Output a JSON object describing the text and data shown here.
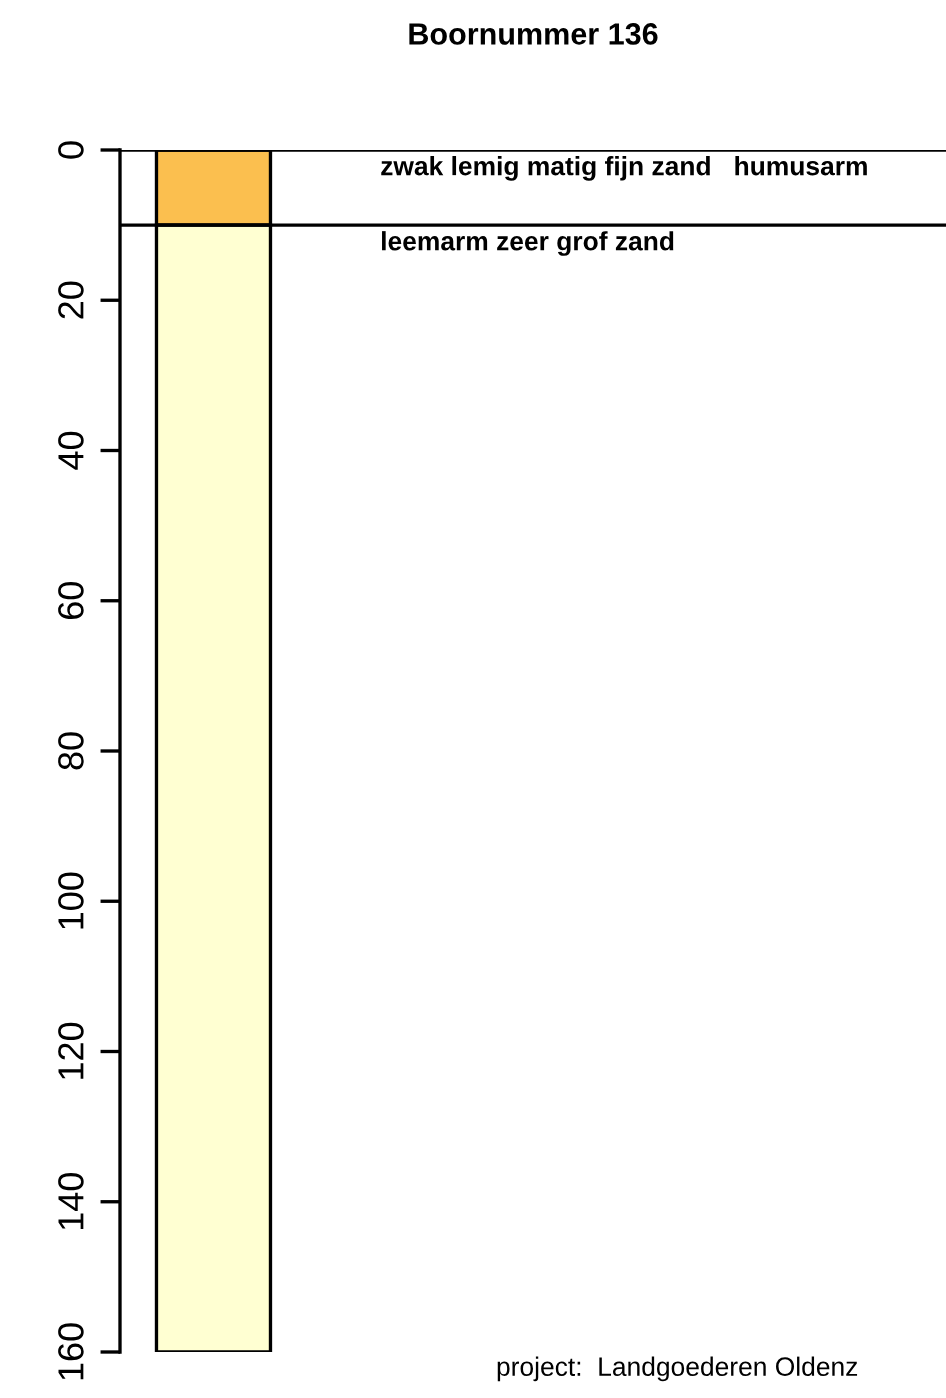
{
  "chart_data": {
    "type": "bar",
    "title": "Boornummer 136",
    "categories": [
      null
    ],
    "series": [
      {
        "color": "#fbbf4f",
        "values": [
          10
        ]
      },
      {
        "color": "#ffffd2",
        "values": [
          150
        ]
      }
    ],
    "stacked": true,
    "ylim": [
      160,
      0
    ],
    "yticks": [
      0,
      20,
      40,
      60,
      80,
      100,
      120,
      140,
      160
    ],
    "tick_labels": "y",
    "grid": false,
    "legend": false,
    "ref_lines": [
      {
        "axis": "y",
        "value": 0,
        "label": "zwak lemig matig fijn zand   humusarm",
        "color": "#000000"
      },
      {
        "axis": "y",
        "value": 10,
        "label": "leemarm zeer grof zand",
        "color": "#000000"
      }
    ],
    "annotations": [
      "project:  Landgoederen Oldenz"
    ]
  }
}
